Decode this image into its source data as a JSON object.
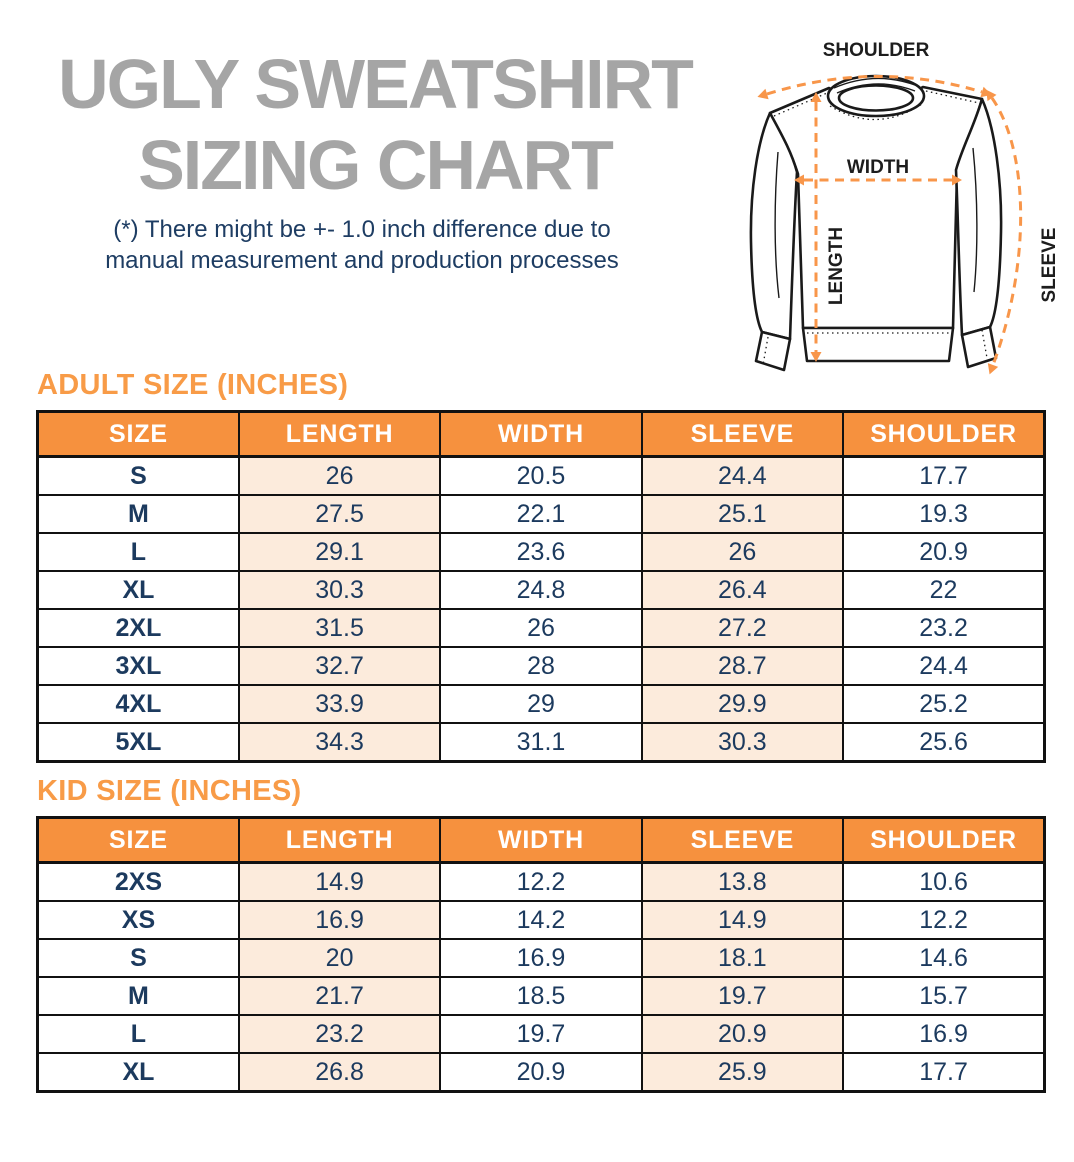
{
  "page": {
    "title_line1": "UGLY SWEATSHIRT",
    "title_line2": "SIZING CHART",
    "disclaimer_line1": "(*) There might be +- 1.0 inch difference due to",
    "disclaimer_line2": "manual measurement and production processes"
  },
  "diagram": {
    "labels": {
      "shoulder": "SHOULDER",
      "width": "WIDTH",
      "length": "LENGTH",
      "sleeve": "SLEEVE"
    }
  },
  "colors": {
    "accent_orange": "#F6913E",
    "heading_orange": "#F89B47",
    "arrow_orange": "#F8964A",
    "navy_text": "#1C3A5E",
    "peach_cell": "#FCEBDC",
    "title_gray": "#A5A5A5",
    "header_text": "#FFFFFF",
    "table_border": "#111111"
  },
  "adult_table": {
    "section_title": "ADULT SIZE (INCHES)",
    "columns": [
      "SIZE",
      "LENGTH",
      "WIDTH",
      "SLEEVE",
      "SHOULDER"
    ],
    "rows": [
      [
        "S",
        "26",
        "20.5",
        "24.4",
        "17.7"
      ],
      [
        "M",
        "27.5",
        "22.1",
        "25.1",
        "19.3"
      ],
      [
        "L",
        "29.1",
        "23.6",
        "26",
        "20.9"
      ],
      [
        "XL",
        "30.3",
        "24.8",
        "26.4",
        "22"
      ],
      [
        "2XL",
        "31.5",
        "26",
        "27.2",
        "23.2"
      ],
      [
        "3XL",
        "32.7",
        "28",
        "28.7",
        "24.4"
      ],
      [
        "4XL",
        "33.9",
        "29",
        "29.9",
        "25.2"
      ],
      [
        "5XL",
        "34.3",
        "31.1",
        "30.3",
        "25.6"
      ]
    ]
  },
  "kid_table": {
    "section_title": "KID SIZE (INCHES)",
    "columns": [
      "SIZE",
      "LENGTH",
      "WIDTH",
      "SLEEVE",
      "SHOULDER"
    ],
    "rows": [
      [
        "2XS",
        "14.9",
        "12.2",
        "13.8",
        "10.6"
      ],
      [
        "XS",
        "16.9",
        "14.2",
        "14.9",
        "12.2"
      ],
      [
        "S",
        "20",
        "16.9",
        "18.1",
        "14.6"
      ],
      [
        "M",
        "21.7",
        "18.5",
        "19.7",
        "15.7"
      ],
      [
        "L",
        "23.2",
        "19.7",
        "20.9",
        "16.9"
      ],
      [
        "XL",
        "26.8",
        "20.9",
        "25.9",
        "17.7"
      ]
    ]
  }
}
